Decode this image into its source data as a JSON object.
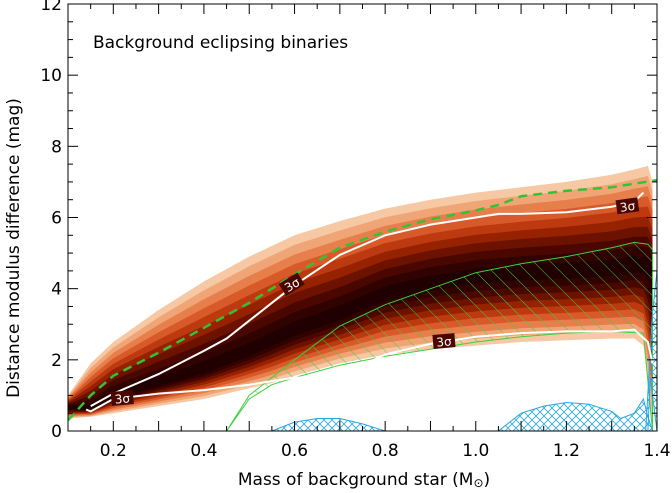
{
  "chart_data": {
    "type": "contour",
    "title": "",
    "annotation": "Background eclipsing binaries",
    "xlabel": "Mass of background star (M",
    "xlabel_symbol": "⊙",
    "xlabel_close": ")",
    "ylabel": "Distance modulus difference (mag)",
    "xlim": [
      0.1,
      1.4
    ],
    "ylim": [
      0,
      12
    ],
    "x_ticks": [
      "0.2",
      "0.4",
      "0.6",
      "0.8",
      "1.0",
      "1.2",
      "1.4"
    ],
    "y_ticks": [
      "0",
      "2",
      "4",
      "6",
      "8",
      "10",
      "12"
    ],
    "contour_label": "3σ",
    "colors": {
      "density_levels": [
        "#f6c8a3",
        "#f0a576",
        "#e77f4c",
        "#d85a2a",
        "#bd3a10",
        "#962200",
        "#6e1200",
        "#4a0700",
        "#300200",
        "#200000"
      ],
      "sigma_contour": "#ffffff",
      "dashed_limit": "#34c234",
      "hatch_green": "#3ecf3e",
      "hatch_blue": "#2aa7e3"
    },
    "outer_envelope": {
      "x_upper": [
        0.1,
        0.15,
        0.2,
        0.3,
        0.4,
        0.5,
        0.6,
        0.7,
        0.8,
        0.9,
        1.0,
        1.1,
        1.2,
        1.3,
        1.35,
        1.38,
        1.39
      ],
      "y_upper": [
        1.0,
        1.9,
        2.5,
        3.4,
        4.2,
        4.9,
        5.5,
        5.9,
        6.25,
        6.5,
        6.7,
        6.85,
        7.0,
        7.2,
        7.35,
        7.45,
        7.0
      ],
      "x_lower": [
        1.39,
        1.38,
        1.37,
        1.35,
        1.3,
        1.2,
        1.1,
        1.0,
        0.9,
        0.8,
        0.7,
        0.6,
        0.55,
        0.5,
        0.4,
        0.3,
        0.2,
        0.15,
        0.1
      ],
      "y_lower": [
        0,
        1.5,
        2.4,
        2.6,
        2.6,
        2.55,
        2.5,
        2.4,
        2.3,
        2.15,
        1.9,
        1.55,
        1.35,
        1.2,
        0.9,
        0.7,
        0.5,
        0.4,
        0.35
      ]
    },
    "sigma_upper_contour": {
      "x": [
        0.15,
        0.2,
        0.3,
        0.4,
        0.45,
        0.5,
        0.6,
        0.7,
        0.8,
        0.9,
        1.0,
        1.05,
        1.1,
        1.2,
        1.3,
        1.35,
        1.37
      ],
      "y": [
        0.7,
        1.05,
        1.6,
        2.25,
        2.6,
        3.1,
        4.1,
        4.95,
        5.5,
        5.8,
        6.0,
        6.1,
        6.1,
        6.15,
        6.3,
        6.45,
        6.7
      ]
    },
    "sigma_lower_contour": {
      "x": [
        0.14,
        0.15,
        0.2,
        0.3,
        0.4,
        0.5,
        0.6,
        0.7,
        0.8,
        0.9,
        1.0,
        1.1,
        1.2,
        1.3,
        1.35,
        1.38,
        1.39
      ],
      "y": [
        0.6,
        0.55,
        0.9,
        1.05,
        1.15,
        1.3,
        1.5,
        1.55,
        2.15,
        2.45,
        2.65,
        2.75,
        2.8,
        2.8,
        2.85,
        2.5,
        1.9
      ]
    },
    "dashed_limit": {
      "x": [
        0.1,
        0.15,
        0.2,
        0.3,
        0.4,
        0.5,
        0.6,
        0.7,
        0.8,
        0.9,
        1.0,
        1.05,
        1.1,
        1.2,
        1.3,
        1.35,
        1.4
      ],
      "y": [
        0.3,
        1.0,
        1.55,
        2.2,
        2.9,
        3.6,
        4.4,
        5.15,
        5.6,
        5.95,
        6.2,
        6.35,
        6.6,
        6.75,
        6.85,
        6.95,
        7.05
      ]
    },
    "green_hatched_region": {
      "x": [
        0.45,
        0.5,
        0.6,
        0.7,
        0.8,
        0.9,
        1.0,
        1.1,
        1.2,
        1.3,
        1.35,
        1.38,
        1.39,
        1.39,
        1.37,
        1.3,
        1.2,
        1.1,
        1.0,
        0.9,
        0.8,
        0.7,
        0.6,
        0.55,
        0.5,
        0.45
      ],
      "y": [
        0,
        1.0,
        2.0,
        2.95,
        3.55,
        4.0,
        4.45,
        4.7,
        4.9,
        5.15,
        5.3,
        5.25,
        5.1,
        0,
        2.75,
        2.8,
        2.75,
        2.65,
        2.5,
        2.3,
        2.1,
        1.85,
        1.5,
        1.3,
        0.9,
        0
      ]
    },
    "blue_hatched_regions": [
      {
        "x": [
          0.55,
          0.6,
          0.65,
          0.7,
          0.75,
          0.8
        ],
        "y": [
          0,
          0.25,
          0.35,
          0.35,
          0.2,
          0
        ]
      },
      {
        "x": [
          1.05,
          1.1,
          1.15,
          1.2,
          1.25,
          1.3,
          1.32,
          1.35,
          1.37,
          1.38,
          1.39
        ],
        "y": [
          0,
          0.5,
          0.7,
          0.8,
          0.75,
          0.55,
          0.35,
          0.5,
          0.9,
          0.4,
          0
        ]
      },
      {
        "x": [
          1.375,
          1.385,
          1.39,
          1.395,
          1.4,
          1.4,
          1.385,
          1.38
        ],
        "y": [
          0,
          2.2,
          3.3,
          3.9,
          4.5,
          0,
          1.5,
          0
        ]
      }
    ]
  }
}
